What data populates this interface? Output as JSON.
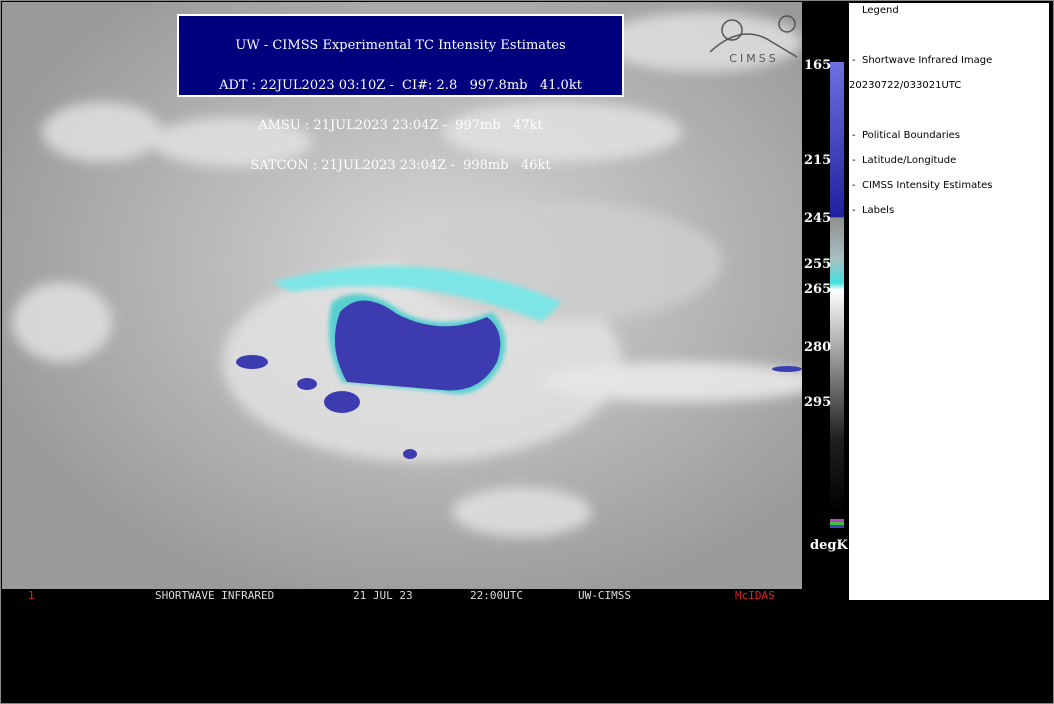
{
  "header": {
    "title": "UW - CIMSS Experimental TC Intensity Estimates",
    "lines": [
      "ADT : 22JUL2023 03:10Z -  CI#: 2.8   997.8mb   41.0kt",
      "AMSU : 21JUL2023 23:04Z -  997mb   47kt",
      "SATCON : 21JUL2023 23:04Z -  998mb   46kt"
    ]
  },
  "logo": "CIMSS",
  "colorbar": {
    "labels": [
      165,
      215,
      245,
      255,
      265,
      280,
      295
    ],
    "unit": "degK"
  },
  "legend": {
    "title": "Legend",
    "items": [
      "Shortwave Infrared Image",
      "20230722/033021UTC",
      "Political Boundaries",
      "Latitude/Longitude",
      "CIMSS Intensity Estimates",
      "Labels"
    ]
  },
  "status_bar": {
    "frame": "1",
    "product": "SHORTWAVE INFRARED",
    "date": "21 JUL 23",
    "time": "22:00UTC",
    "source": "UW-CIMSS",
    "software": "McIDAS"
  }
}
